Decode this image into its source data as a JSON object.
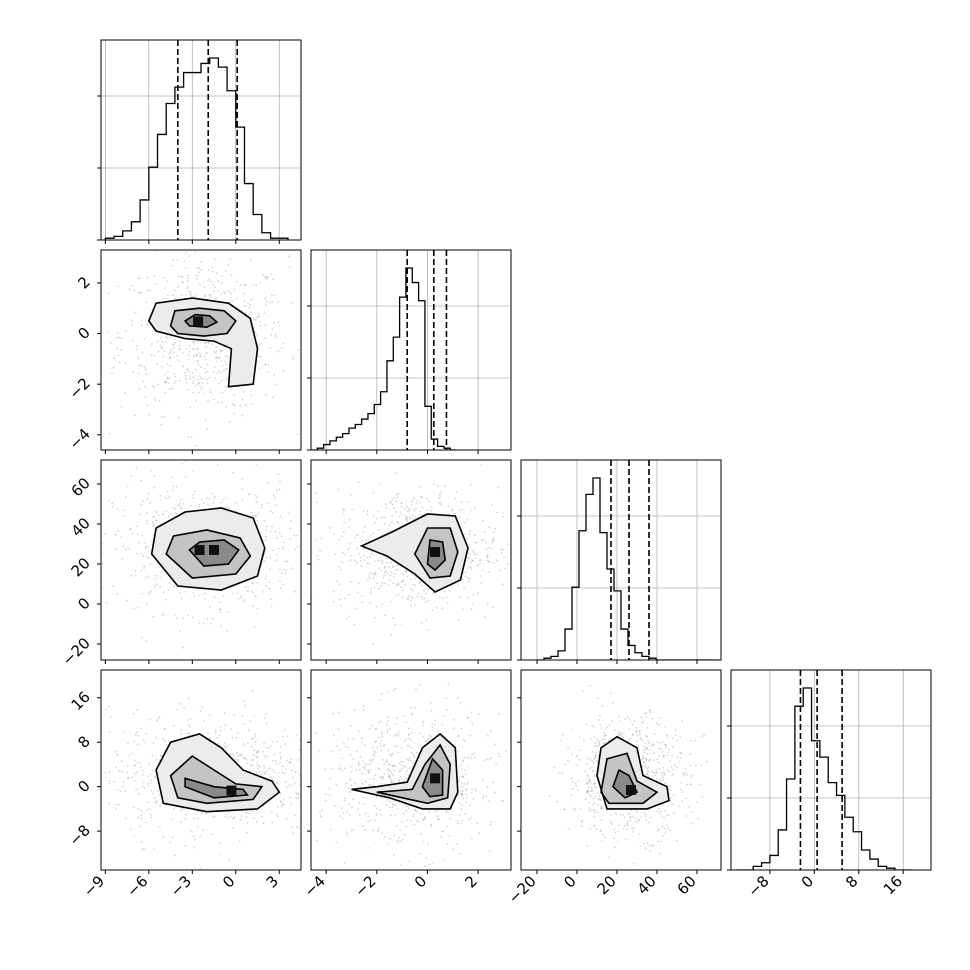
{
  "chart_data": {
    "type": "corner",
    "grid": true,
    "parameters": [
      {
        "id": "p1",
        "range": [
          -9.3,
          4.5
        ],
        "ticks": [
          -9,
          -6,
          -3,
          0,
          3
        ],
        "tick_labels": [
          "−9",
          "−6",
          "−3",
          "0",
          "3"
        ],
        "quantiles": [
          -4.0,
          -1.9,
          0.1
        ]
      },
      {
        "id": "p2",
        "range": [
          -4.6,
          3.3
        ],
        "ticks": [
          -4,
          -2,
          0,
          2
        ],
        "tick_labels": [
          "−4",
          "−2",
          "0",
          "2"
        ],
        "quantiles": [
          -0.8,
          0.25,
          0.75
        ]
      },
      {
        "id": "p3",
        "range": [
          -28,
          72
        ],
        "ticks": [
          -20,
          0,
          20,
          40,
          60
        ],
        "tick_labels": [
          "−20",
          "0",
          "20",
          "40",
          "60"
        ],
        "quantiles": [
          17,
          26,
          36
        ]
      },
      {
        "id": "p4",
        "range": [
          -15,
          21
        ],
        "ticks": [
          -8,
          0,
          8,
          16
        ],
        "tick_labels": [
          "−8",
          "0",
          "8",
          "16"
        ],
        "quantiles": [
          -2.5,
          0.5,
          5
        ]
      }
    ],
    "histograms": [
      {
        "param": 0,
        "edges_start": -9.0,
        "bin_width": 0.6,
        "ymax": 1.0,
        "counts": [
          0.01,
          0.02,
          0.05,
          0.1,
          0.22,
          0.4,
          0.58,
          0.75,
          0.84,
          0.92,
          0.92,
          0.97,
          1.0,
          0.95,
          0.82,
          0.62,
          0.31,
          0.14,
          0.04,
          0.01,
          0.01
        ]
      },
      {
        "param": 1,
        "edges_start": -4.6,
        "bin_width": 0.25,
        "ymax": 1.0,
        "counts": [
          0.0,
          0.01,
          0.03,
          0.05,
          0.07,
          0.09,
          0.12,
          0.14,
          0.17,
          0.2,
          0.25,
          0.32,
          0.49,
          0.62,
          0.84,
          1.0,
          0.92,
          0.82,
          0.24,
          0.06,
          0.02,
          0.01,
          0.0
        ]
      },
      {
        "param": 2,
        "edges_start": -20,
        "bin_width": 3.5,
        "ymax": 1.0,
        "counts": [
          0.0,
          0.01,
          0.02,
          0.05,
          0.17,
          0.4,
          0.71,
          0.91,
          1.0,
          0.7,
          0.5,
          0.38,
          0.17,
          0.08,
          0.04,
          0.02,
          0.01,
          0.0,
          0.0,
          0.0,
          0.0,
          0.0,
          0.0,
          0.0,
          0.0,
          0.0
        ]
      },
      {
        "param": 3,
        "edges_start": -14,
        "bin_width": 1.5,
        "ymax": 1.0,
        "counts": [
          0.0,
          0.0,
          0.02,
          0.04,
          0.08,
          0.22,
          0.5,
          0.9,
          1.0,
          0.71,
          0.62,
          0.48,
          0.41,
          0.29,
          0.21,
          0.11,
          0.06,
          0.02,
          0.01,
          0.0,
          0.0
        ]
      }
    ],
    "pairs": [
      {
        "x": 0,
        "y": 1,
        "contours": [
          [
            [
              -5.5,
              0.1
            ],
            [
              -6.0,
              0.5
            ],
            [
              -5.5,
              1.2
            ],
            [
              -3.0,
              1.4
            ],
            [
              -0.5,
              1.2
            ],
            [
              1.0,
              0.6
            ],
            [
              1.5,
              -0.6
            ],
            [
              1.2,
              -2.0
            ],
            [
              -0.5,
              -2.1
            ],
            [
              -0.3,
              -0.6
            ],
            [
              -1.5,
              -0.3
            ],
            [
              -3.5,
              -0.2
            ],
            [
              -5.5,
              0.1
            ]
          ],
          [
            [
              -4.5,
              0.3
            ],
            [
              -4.2,
              0.9
            ],
            [
              -2.5,
              1.0
            ],
            [
              -0.8,
              0.9
            ],
            [
              0.0,
              0.5
            ],
            [
              -0.6,
              0.0
            ],
            [
              -2.2,
              -0.1
            ],
            [
              -4.0,
              0.0
            ],
            [
              -4.5,
              0.3
            ]
          ],
          [
            [
              -3.5,
              0.5
            ],
            [
              -2.8,
              0.75
            ],
            [
              -1.8,
              0.7
            ],
            [
              -1.3,
              0.45
            ],
            [
              -2.0,
              0.25
            ],
            [
              -3.2,
              0.3
            ],
            [
              -3.5,
              0.5
            ]
          ]
        ],
        "core": [
          [
            -2.6,
            0.48
          ]
        ]
      },
      {
        "x": 0,
        "y": 2,
        "contours": [
          [
            [
              -5.8,
              25
            ],
            [
              -5.5,
              38
            ],
            [
              -3.5,
              46
            ],
            [
              -1.0,
              48
            ],
            [
              1.2,
              43
            ],
            [
              2.0,
              28
            ],
            [
              1.5,
              14
            ],
            [
              -1.0,
              7
            ],
            [
              -4.0,
              9
            ],
            [
              -5.8,
              25
            ]
          ],
          [
            [
              -4.8,
              25
            ],
            [
              -4.3,
              34
            ],
            [
              -2.0,
              37
            ],
            [
              0.3,
              33
            ],
            [
              1.0,
              24
            ],
            [
              0.0,
              15
            ],
            [
              -3.0,
              13
            ],
            [
              -4.8,
              25
            ]
          ],
          [
            [
              -3.2,
              27
            ],
            [
              -2.5,
              31
            ],
            [
              -0.8,
              32
            ],
            [
              0.2,
              27
            ],
            [
              -0.5,
              20
            ],
            [
              -2.2,
              19
            ],
            [
              -3.2,
              27
            ]
          ]
        ],
        "core": [
          [
            -2.5,
            27
          ],
          [
            -1.5,
            27
          ]
        ]
      },
      {
        "x": 1,
        "y": 2,
        "contours": [
          [
            [
              -2.6,
              29
            ],
            [
              -1.4,
              36
            ],
            [
              0.0,
              45
            ],
            [
              1.1,
              44
            ],
            [
              1.6,
              28
            ],
            [
              1.3,
              12
            ],
            [
              0.3,
              6
            ],
            [
              -0.5,
              15
            ],
            [
              -1.6,
              24
            ],
            [
              -2.6,
              29
            ]
          ],
          [
            [
              -0.5,
              25
            ],
            [
              0.0,
              38
            ],
            [
              0.9,
              38
            ],
            [
              1.2,
              26
            ],
            [
              0.9,
              14
            ],
            [
              0.1,
              13
            ],
            [
              -0.5,
              25
            ]
          ],
          [
            [
              0.0,
              20
            ],
            [
              0.1,
              32
            ],
            [
              0.6,
              31
            ],
            [
              0.7,
              22
            ],
            [
              0.3,
              17
            ],
            [
              0.0,
              20
            ]
          ]
        ],
        "core": [
          [
            0.3,
            26
          ]
        ]
      },
      {
        "x": 0,
        "y": 3,
        "contours": [
          [
            [
              -5.5,
              3
            ],
            [
              -4.5,
              8
            ],
            [
              -2.5,
              9.5
            ],
            [
              -1.0,
              7
            ],
            [
              0.5,
              3
            ],
            [
              2.5,
              1
            ],
            [
              3.0,
              -1
            ],
            [
              1.5,
              -4
            ],
            [
              -2.0,
              -4.5
            ],
            [
              -5.0,
              -3
            ],
            [
              -5.5,
              3
            ]
          ],
          [
            [
              -4.5,
              2
            ],
            [
              -3.0,
              5.5
            ],
            [
              -1.5,
              3
            ],
            [
              0.0,
              0.5
            ],
            [
              1.8,
              0
            ],
            [
              1.2,
              -2.3
            ],
            [
              -2.0,
              -3
            ],
            [
              -4.0,
              -2
            ],
            [
              -4.5,
              2
            ]
          ],
          [
            [
              -3.5,
              1.5
            ],
            [
              -1.5,
              0
            ],
            [
              0.5,
              -0.5
            ],
            [
              0.8,
              -1.5
            ],
            [
              -1.5,
              -2
            ],
            [
              -3.5,
              0
            ],
            [
              -3.5,
              1.5
            ]
          ]
        ],
        "core": [
          [
            -0.3,
            -0.7
          ]
        ]
      },
      {
        "x": 1,
        "y": 3,
        "contours": [
          [
            [
              -3.0,
              -0.5
            ],
            [
              -2.0,
              0
            ],
            [
              -0.8,
              0.8
            ],
            [
              -0.2,
              7
            ],
            [
              0.5,
              9.5
            ],
            [
              1.1,
              7
            ],
            [
              1.2,
              -1
            ],
            [
              0.9,
              -4
            ],
            [
              -0.2,
              -4
            ],
            [
              -1.5,
              -2
            ],
            [
              -3.0,
              -0.5
            ]
          ],
          [
            [
              -2.0,
              -1
            ],
            [
              -0.6,
              -0.5
            ],
            [
              -0.1,
              4
            ],
            [
              0.5,
              7.5
            ],
            [
              0.9,
              4
            ],
            [
              0.8,
              -2
            ],
            [
              0.0,
              -3
            ],
            [
              -2.0,
              -1
            ]
          ],
          [
            [
              -0.2,
              0
            ],
            [
              0.2,
              5
            ],
            [
              0.6,
              3
            ],
            [
              0.6,
              -1.5
            ],
            [
              0.1,
              -1.8
            ],
            [
              -0.2,
              0
            ]
          ]
        ],
        "core": [
          [
            0.3,
            1.5
          ]
        ]
      },
      {
        "x": 2,
        "y": 3,
        "contours": [
          [
            [
              10,
              2
            ],
            [
              12,
              7
            ],
            [
              20,
              9
            ],
            [
              30,
              7
            ],
            [
              33,
              2
            ],
            [
              45,
              0
            ],
            [
              46,
              -2.5
            ],
            [
              35,
              -4
            ],
            [
              15,
              -4
            ],
            [
              10,
              2
            ]
          ],
          [
            [
              12,
              -1
            ],
            [
              15,
              5
            ],
            [
              25,
              6
            ],
            [
              30,
              1
            ],
            [
              40,
              -1
            ],
            [
              33,
              -3
            ],
            [
              16,
              -3
            ],
            [
              12,
              -1
            ]
          ],
          [
            [
              18,
              0
            ],
            [
              21,
              3
            ],
            [
              26,
              2
            ],
            [
              30,
              -1
            ],
            [
              24,
              -2
            ],
            [
              18,
              0
            ]
          ]
        ],
        "core": [
          [
            27,
            -0.6
          ]
        ]
      }
    ]
  }
}
